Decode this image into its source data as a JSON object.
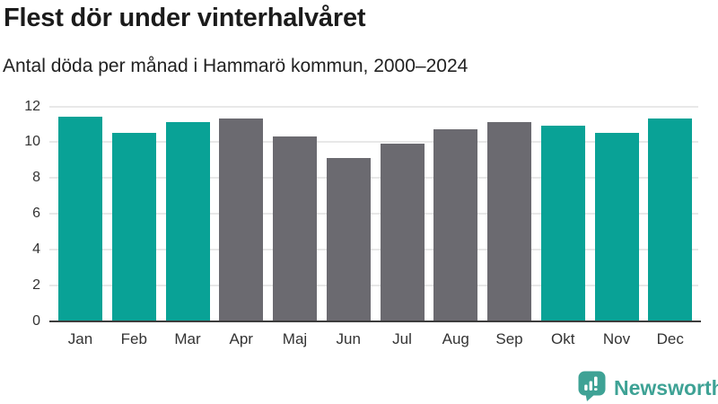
{
  "header": {
    "title": "Flest dör under vinterhalvåret",
    "subtitle": "Antal döda per månad i Hammarö kommun, 2000–2024"
  },
  "chart_data": {
    "type": "bar",
    "title": "Flest dör under vinterhalvåret",
    "subtitle": "Antal döda per månad i Hammarö kommun, 2000–2024",
    "categories": [
      "Jan",
      "Feb",
      "Mar",
      "Apr",
      "Maj",
      "Jun",
      "Jul",
      "Aug",
      "Sep",
      "Okt",
      "Nov",
      "Dec"
    ],
    "values": [
      11.4,
      10.5,
      11.1,
      11.3,
      10.3,
      9.1,
      9.9,
      10.7,
      11.1,
      10.9,
      10.5,
      11.3
    ],
    "bar_colors": [
      "#09a296",
      "#09a296",
      "#09a296",
      "#6b6a70",
      "#6b6a70",
      "#6b6a70",
      "#6b6a70",
      "#6b6a70",
      "#6b6a70",
      "#09a296",
      "#09a296",
      "#09a296"
    ],
    "xlabel": "",
    "ylabel": "",
    "ylim": [
      0,
      12
    ],
    "yticks": [
      0,
      2,
      4,
      6,
      8,
      10,
      12
    ],
    "grid": true,
    "legend": false
  },
  "colors": {
    "winter_bar": "#09a296",
    "summer_bar": "#6b6a70",
    "grid_line": "#e8e8e8",
    "axis_line": "#3d3d3d",
    "brand_teal": "#3ea295",
    "title_text": "#1b1b1b",
    "tick_text": "#333333"
  },
  "footer": {
    "brand_name": "Newsworthy",
    "brand_icon": "bar-chart-speech-bubble-icon"
  }
}
